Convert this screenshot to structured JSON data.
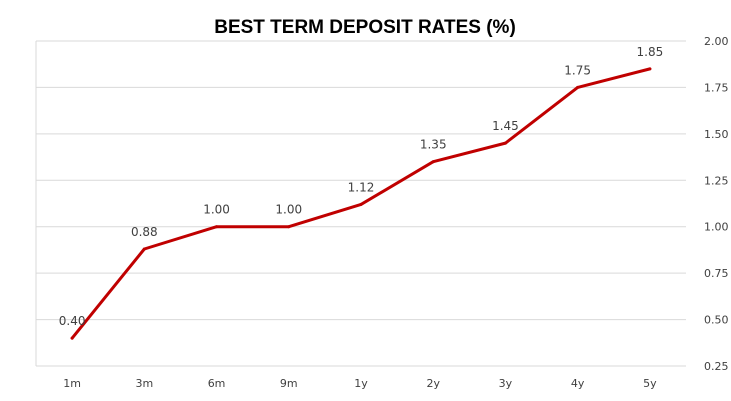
{
  "chart_data": {
    "type": "line",
    "title": "BEST TERM DEPOSIT RATES (%)",
    "xlabel": "",
    "ylabel": "",
    "categories": [
      "1m",
      "3m",
      "6m",
      "9m",
      "1y",
      "2y",
      "3y",
      "4y",
      "5y"
    ],
    "series": [
      {
        "values": [
          0.4,
          0.88,
          1.0,
          1.0,
          1.12,
          1.35,
          1.45,
          1.75,
          1.85
        ],
        "labels": [
          "0.40",
          "0.88",
          "1.00",
          "1.00",
          "1.12",
          "1.35",
          "1.45",
          "1.75",
          "1.85"
        ],
        "color": "#c00000"
      }
    ],
    "ylim": [
      0.25,
      2.0
    ],
    "yticks": [
      "0.25",
      "0.50",
      "0.75",
      "1.00",
      "1.25",
      "1.50",
      "1.75",
      "2.00"
    ],
    "yaxis_position": "right",
    "grid": true,
    "legend": "none"
  }
}
